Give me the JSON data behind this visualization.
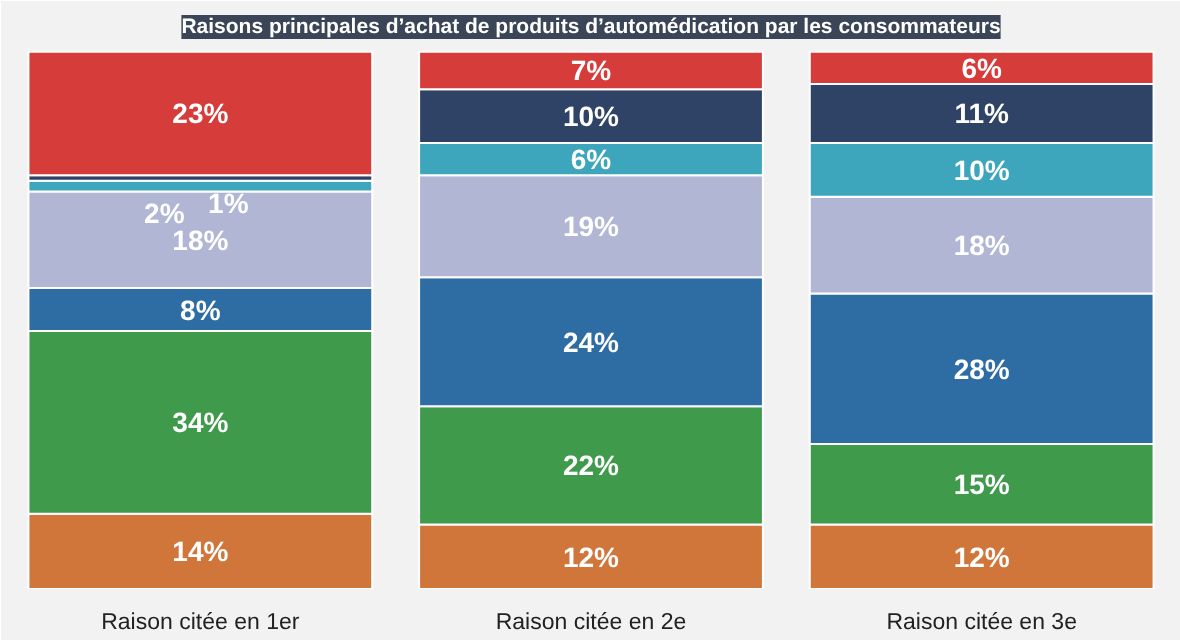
{
  "chart_data": {
    "type": "bar",
    "stacked": true,
    "title": "Raisons principales d’achat de produits d’automédication par les consommateurs",
    "categories": [
      "Raison citée en 1er",
      "Raison citée en 2e",
      "Raison citée en 3e"
    ],
    "series": [
      {
        "color": "#d0763a",
        "values": [
          14,
          12,
          12
        ],
        "value_labels": [
          "14%",
          "12%",
          "12%"
        ]
      },
      {
        "color": "#3f9a4c",
        "values": [
          34,
          22,
          15
        ],
        "value_labels": [
          "34%",
          "22%",
          "15%"
        ]
      },
      {
        "color": "#2e6da4",
        "values": [
          8,
          24,
          28
        ],
        "value_labels": [
          "8%",
          "24%",
          "28%"
        ]
      },
      {
        "color": "#b0b6d3",
        "values": [
          18,
          19,
          18
        ],
        "value_labels": [
          "18%",
          "19%",
          "18%"
        ]
      },
      {
        "color": "#3ea6bc",
        "values": [
          2,
          6,
          10
        ],
        "value_labels": [
          "2%",
          "6%",
          "10%"
        ]
      },
      {
        "color": "#2f4366",
        "values": [
          1,
          10,
          11
        ],
        "value_labels": [
          "1%",
          "10%",
          "11%"
        ]
      },
      {
        "color": "#d63d3a",
        "values": [
          23,
          7,
          6
        ],
        "value_labels": [
          "23%",
          "7%",
          "6%"
        ]
      }
    ],
    "grid": false
  }
}
